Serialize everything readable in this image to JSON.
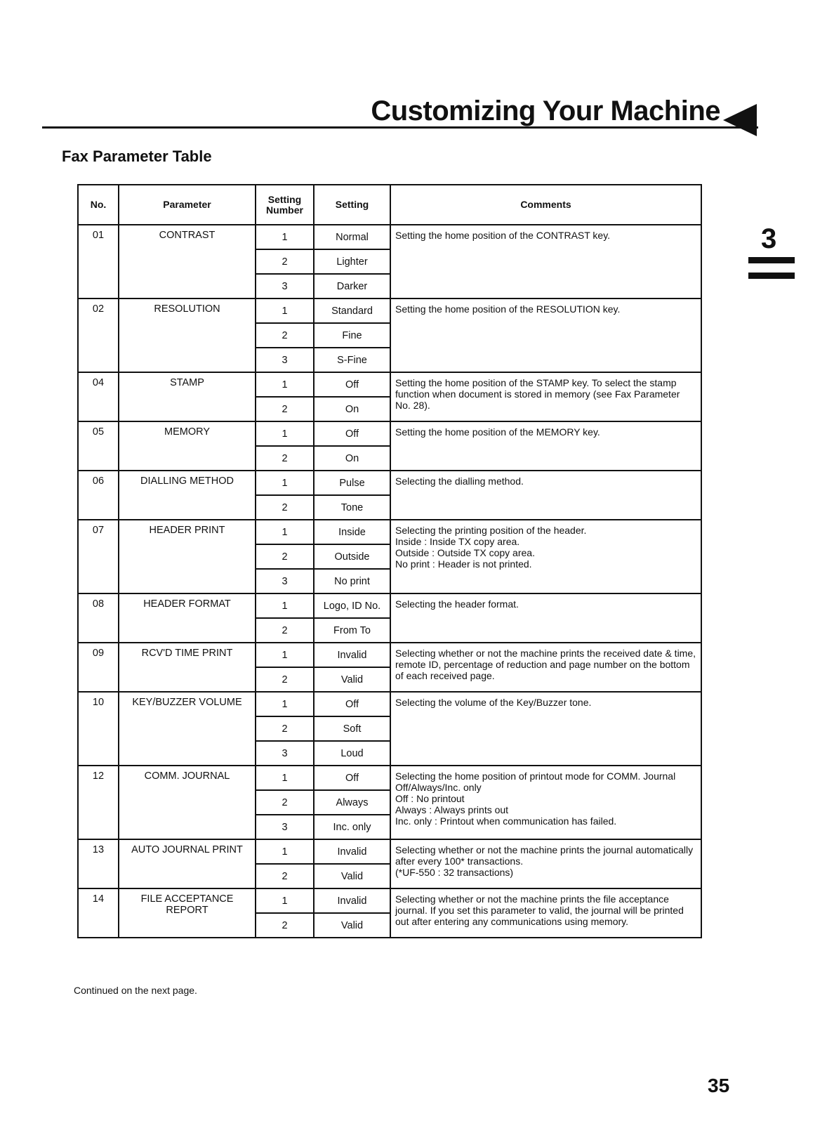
{
  "header": {
    "title": "Customizing Your Machine",
    "section": "Fax Parameter Table",
    "chapter": "3"
  },
  "table": {
    "columns": [
      "No.",
      "Parameter",
      "Setting Number",
      "Setting",
      "Comments"
    ],
    "rows": [
      {
        "no": "01",
        "parameter": "CONTRAST",
        "settings": [
          {
            "number": "1",
            "setting": "Normal"
          },
          {
            "number": "2",
            "setting": "Lighter"
          },
          {
            "number": "3",
            "setting": "Darker"
          }
        ],
        "comments": [
          "Setting the home position of the CONTRAST key."
        ]
      },
      {
        "no": "02",
        "parameter": "RESOLUTION",
        "settings": [
          {
            "number": "1",
            "setting": "Standard"
          },
          {
            "number": "2",
            "setting": "Fine"
          },
          {
            "number": "3",
            "setting": "S-Fine"
          }
        ],
        "comments": [
          "Setting the home position of the RESOLUTION key."
        ]
      },
      {
        "no": "04",
        "parameter": "STAMP",
        "settings": [
          {
            "number": "1",
            "setting": "Off"
          },
          {
            "number": "2",
            "setting": "On"
          }
        ],
        "comments": [
          "Setting the home position of the STAMP key. To select the stamp function when document is stored in memory (see Fax Parameter No. 28)."
        ]
      },
      {
        "no": "05",
        "parameter": "MEMORY",
        "settings": [
          {
            "number": "1",
            "setting": "Off"
          },
          {
            "number": "2",
            "setting": "On"
          }
        ],
        "comments": [
          "Setting the home position of the MEMORY key."
        ]
      },
      {
        "no": "06",
        "parameter": "DIALLING METHOD",
        "settings": [
          {
            "number": "1",
            "setting": "Pulse"
          },
          {
            "number": "2",
            "setting": "Tone"
          }
        ],
        "comments": [
          "Selecting the dialling method."
        ]
      },
      {
        "no": "07",
        "parameter": "HEADER PRINT",
        "settings": [
          {
            "number": "1",
            "setting": "Inside"
          },
          {
            "number": "2",
            "setting": "Outside"
          },
          {
            "number": "3",
            "setting": "No print"
          }
        ],
        "comments": [
          "Selecting the printing position of the header.",
          "Inside : Inside TX copy area.",
          "Outside : Outside TX copy area.",
          "No print : Header is not printed."
        ]
      },
      {
        "no": "08",
        "parameter": "HEADER FORMAT",
        "settings": [
          {
            "number": "1",
            "setting": "Logo, ID No."
          },
          {
            "number": "2",
            "setting": "From To"
          }
        ],
        "comments": [
          "Selecting the header format."
        ]
      },
      {
        "no": "09",
        "parameter": "RCV'D TIME PRINT",
        "settings": [
          {
            "number": "1",
            "setting": "Invalid"
          },
          {
            "number": "2",
            "setting": "Valid"
          }
        ],
        "comments": [
          "Selecting whether or not the machine prints the received date & time, remote ID, percentage of reduction and page number on the bottom of each received page."
        ]
      },
      {
        "no": "10",
        "parameter": "KEY/BUZZER VOLUME",
        "settings": [
          {
            "number": "1",
            "setting": "Off"
          },
          {
            "number": "2",
            "setting": "Soft"
          },
          {
            "number": "3",
            "setting": "Loud"
          }
        ],
        "comments": [
          "Selecting the volume of the Key/Buzzer tone."
        ]
      },
      {
        "no": "12",
        "parameter": "COMM. JOURNAL",
        "settings": [
          {
            "number": "1",
            "setting": "Off"
          },
          {
            "number": "2",
            "setting": "Always"
          },
          {
            "number": "3",
            "setting": "Inc. only"
          }
        ],
        "comments": [
          "Selecting the home position of printout mode for COMM. Journal Off/Always/Inc. only",
          "Off : No printout",
          "Always : Always prints out",
          "Inc. only : Printout when communication has failed."
        ]
      },
      {
        "no": "13",
        "parameter": "AUTO JOURNAL PRINT",
        "settings": [
          {
            "number": "1",
            "setting": "Invalid"
          },
          {
            "number": "2",
            "setting": "Valid"
          }
        ],
        "comments": [
          "Selecting whether or not the machine prints the journal automatically after every 100* transactions.",
          "(*UF-550 : 32 transactions)"
        ]
      },
      {
        "no": "14",
        "parameter": "FILE ACCEPTANCE REPORT",
        "settings": [
          {
            "number": "1",
            "setting": "Invalid"
          },
          {
            "number": "2",
            "setting": "Valid"
          }
        ],
        "comments": [
          "Selecting whether or not the machine prints the file acceptance journal. If you set this parameter to valid, the journal will be printed out after entering any communications using memory."
        ]
      }
    ]
  },
  "footer": {
    "note": "Continued on the next page.",
    "page": "35"
  }
}
